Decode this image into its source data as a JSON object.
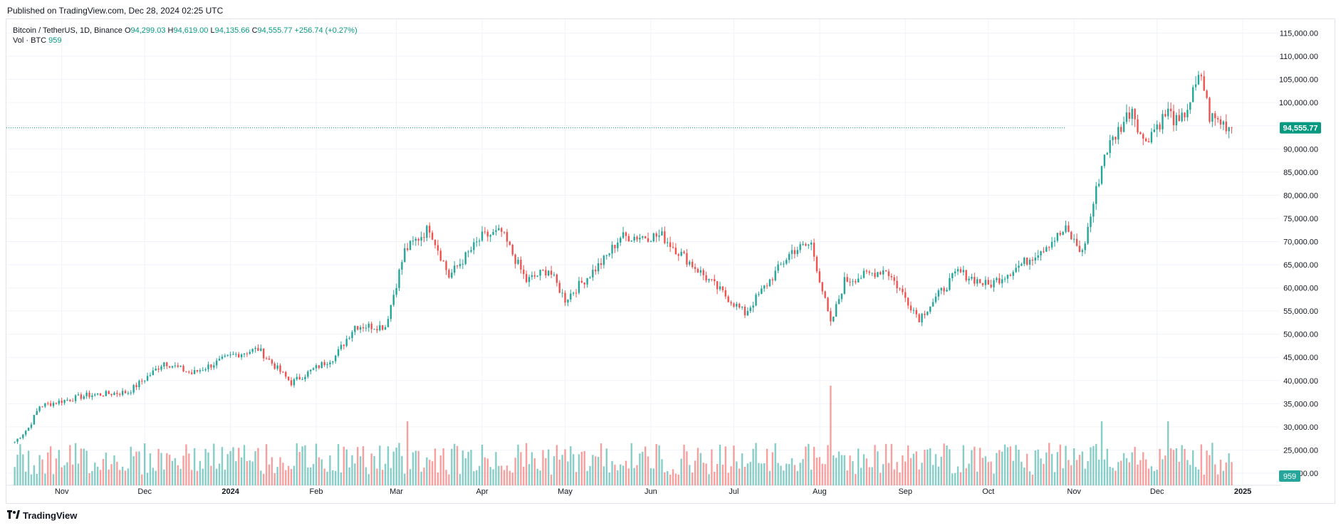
{
  "published": "Published on TradingView.com, Dec 28, 2024 02:25 UTC",
  "legend": {
    "symbol": "Bitcoin / TetherUS, 1D, Binance",
    "o_label": "O",
    "o_value": "94,299.03",
    "h_label": "H",
    "h_value": "94,619.00",
    "l_label": "L",
    "l_value": "94,135.66",
    "c_label": "C",
    "c_value": "94,555.77",
    "change": "+256.74 (+0.27%)"
  },
  "volume_legend": {
    "label": "Vol · BTC",
    "value": "959"
  },
  "footer": {
    "brand": "TradingView",
    "icon": "tradingview-logo-icon"
  },
  "colors": {
    "up": "#26a69a",
    "down": "#ef5350",
    "last_price": "#089981",
    "grid": "#f0f3fa"
  },
  "chart_data": {
    "type": "candlestick",
    "title": "",
    "y_axis": {
      "ticks": [
        "115,000.00",
        "110,000.00",
        "105,000.00",
        "100,000.00",
        "95,000.00",
        "90,000.00",
        "85,000.00",
        "80,000.00",
        "75,000.00",
        "70,000.00",
        "65,000.00",
        "60,000.00",
        "55,000.00",
        "50,000.00",
        "45,000.00",
        "40,000.00",
        "35,000.00",
        "30,000.00",
        "25,000.00",
        "20,000.00"
      ],
      "min": 18000,
      "max": 118000
    },
    "x_axis": {
      "ticks": [
        "Nov",
        "Dec",
        "2024",
        "Feb",
        "Mar",
        "Apr",
        "May",
        "Jun",
        "Jul",
        "Aug",
        "Sep",
        "Oct",
        "Nov",
        "Dec",
        "2025"
      ],
      "bold": [
        "2024",
        "2025"
      ]
    },
    "last_price": {
      "value": 94555.77,
      "label": "94,555.77"
    },
    "volume_label": "959",
    "price_path": [
      {
        "date": "2023-10-15",
        "close": 26800
      },
      {
        "date": "2023-10-20",
        "close": 29800
      },
      {
        "date": "2023-10-24",
        "close": 34500
      },
      {
        "date": "2023-11-10",
        "close": 36800
      },
      {
        "date": "2023-11-25",
        "close": 37500
      },
      {
        "date": "2023-12-04",
        "close": 41800
      },
      {
        "date": "2023-12-08",
        "close": 44000
      },
      {
        "date": "2023-12-18",
        "close": 41500
      },
      {
        "date": "2024-01-02",
        "close": 45500
      },
      {
        "date": "2024-01-11",
        "close": 46800
      },
      {
        "date": "2024-01-23",
        "close": 39500
      },
      {
        "date": "2024-02-08",
        "close": 45300
      },
      {
        "date": "2024-02-15",
        "close": 51800
      },
      {
        "date": "2024-02-26",
        "close": 51700
      },
      {
        "date": "2024-03-04",
        "close": 68000
      },
      {
        "date": "2024-03-13",
        "close": 73000
      },
      {
        "date": "2024-03-20",
        "close": 62500
      },
      {
        "date": "2024-04-01",
        "close": 71000
      },
      {
        "date": "2024-04-08",
        "close": 72000
      },
      {
        "date": "2024-04-17",
        "close": 61500
      },
      {
        "date": "2024-04-25",
        "close": 64000
      },
      {
        "date": "2024-05-01",
        "close": 57500
      },
      {
        "date": "2024-05-15",
        "close": 66000
      },
      {
        "date": "2024-05-21",
        "close": 71000
      },
      {
        "date": "2024-06-05",
        "close": 71200
      },
      {
        "date": "2024-06-24",
        "close": 60500
      },
      {
        "date": "2024-07-05",
        "close": 54500
      },
      {
        "date": "2024-07-22",
        "close": 68000
      },
      {
        "date": "2024-07-29",
        "close": 69500
      },
      {
        "date": "2024-08-05",
        "close": 52000
      },
      {
        "date": "2024-08-10",
        "close": 61500
      },
      {
        "date": "2024-08-25",
        "close": 64000
      },
      {
        "date": "2024-09-06",
        "close": 53500
      },
      {
        "date": "2024-09-20",
        "close": 63500
      },
      {
        "date": "2024-10-01",
        "close": 60500
      },
      {
        "date": "2024-10-14",
        "close": 65500
      },
      {
        "date": "2024-10-29",
        "close": 72500
      },
      {
        "date": "2024-11-04",
        "close": 67500
      },
      {
        "date": "2024-11-12",
        "close": 89000
      },
      {
        "date": "2024-11-22",
        "close": 99000
      },
      {
        "date": "2024-11-26",
        "close": 91500
      },
      {
        "date": "2024-12-05",
        "close": 98000
      },
      {
        "date": "2024-12-09",
        "close": 95000
      },
      {
        "date": "2024-12-17",
        "close": 106000
      },
      {
        "date": "2024-12-20",
        "close": 97000
      },
      {
        "date": "2024-12-28",
        "close": 94555.77
      }
    ],
    "volume_spikes": [
      {
        "date": "2024-03-05",
        "value": "high"
      },
      {
        "date": "2024-08-05",
        "value": "highest"
      },
      {
        "date": "2024-11-11",
        "value": "high"
      },
      {
        "date": "2024-12-05",
        "value": "high"
      }
    ]
  }
}
